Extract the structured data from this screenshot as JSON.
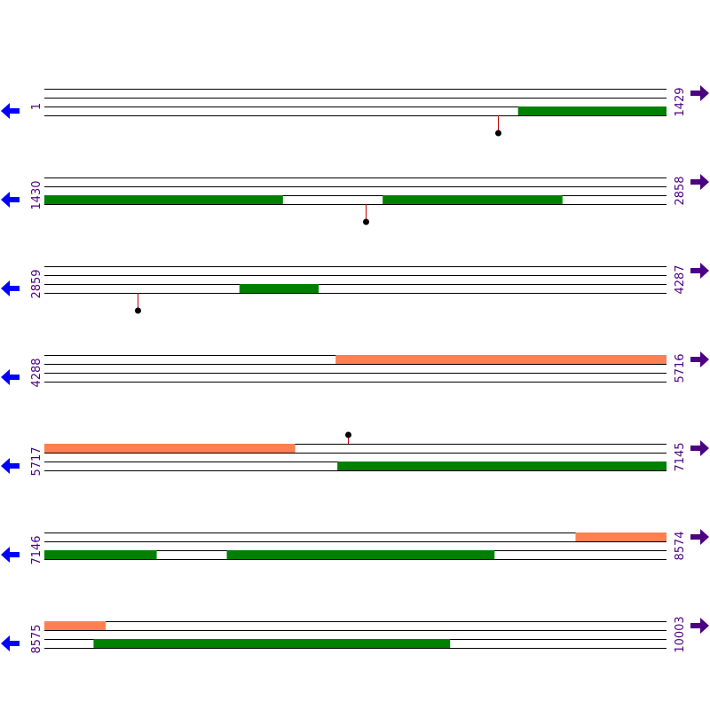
{
  "colors": {
    "track_line": "#000000",
    "feature_forward": "#008000",
    "feature_reverse": "#ff7f50",
    "marker_stem": "#c00000",
    "marker_dot": "#000000",
    "left_arrow": "#0000ff",
    "right_arrow": "#4b0082",
    "coord_text": "#4b0082"
  },
  "icons": {
    "left": "left-arrow-icon",
    "right": "right-arrow-icon"
  },
  "rows": [
    {
      "start_label": "1",
      "end_label": "1429",
      "start": 1,
      "end": 1429,
      "features": [
        {
          "lane": 2,
          "from": 1089,
          "to": 1429,
          "color": "feature_forward"
        }
      ],
      "markers": [
        {
          "pos": 1043,
          "dir": "down"
        }
      ]
    },
    {
      "start_label": "1430",
      "end_label": "2858",
      "start": 1430,
      "end": 2858,
      "features": [
        {
          "lane": 2,
          "from": 1430,
          "to": 1977,
          "color": "feature_forward"
        },
        {
          "lane": 2,
          "from": 2207,
          "to": 2619,
          "color": "feature_forward"
        }
      ],
      "markers": [
        {
          "pos": 2168,
          "dir": "down"
        }
      ]
    },
    {
      "start_label": "2859",
      "end_label": "4287",
      "start": 2859,
      "end": 4287,
      "features": [
        {
          "lane": 2,
          "from": 3307,
          "to": 3488,
          "color": "feature_forward"
        }
      ],
      "markers": [
        {
          "pos": 3073,
          "dir": "down"
        }
      ]
    },
    {
      "start_label": "4288",
      "end_label": "5716",
      "start": 4288,
      "end": 5716,
      "features": [
        {
          "lane": 0,
          "from": 4957,
          "to": 5716,
          "color": "feature_reverse"
        }
      ],
      "markers": []
    },
    {
      "start_label": "5717",
      "end_label": "7145",
      "start": 5717,
      "end": 7145,
      "features": [
        {
          "lane": 0,
          "from": 5717,
          "to": 6292,
          "color": "feature_reverse"
        },
        {
          "lane": 2,
          "from": 6390,
          "to": 7145,
          "color": "feature_forward"
        }
      ],
      "markers": [
        {
          "pos": 6415,
          "dir": "up"
        }
      ]
    },
    {
      "start_label": "7146",
      "end_label": "8574",
      "start": 7146,
      "end": 8574,
      "features": [
        {
          "lane": 0,
          "from": 8366,
          "to": 8574,
          "color": "feature_reverse"
        },
        {
          "lane": 2,
          "from": 7146,
          "to": 7403,
          "color": "feature_forward"
        },
        {
          "lane": 2,
          "from": 7565,
          "to": 8179,
          "color": "feature_forward"
        }
      ],
      "markers": []
    },
    {
      "start_label": "8575",
      "end_label": "10003",
      "start": 8575,
      "end": 10003,
      "features": [
        {
          "lane": 0,
          "from": 8575,
          "to": 8715,
          "color": "feature_reverse"
        },
        {
          "lane": 2,
          "from": 8688,
          "to": 9506,
          "color": "feature_forward"
        }
      ],
      "markers": []
    }
  ]
}
